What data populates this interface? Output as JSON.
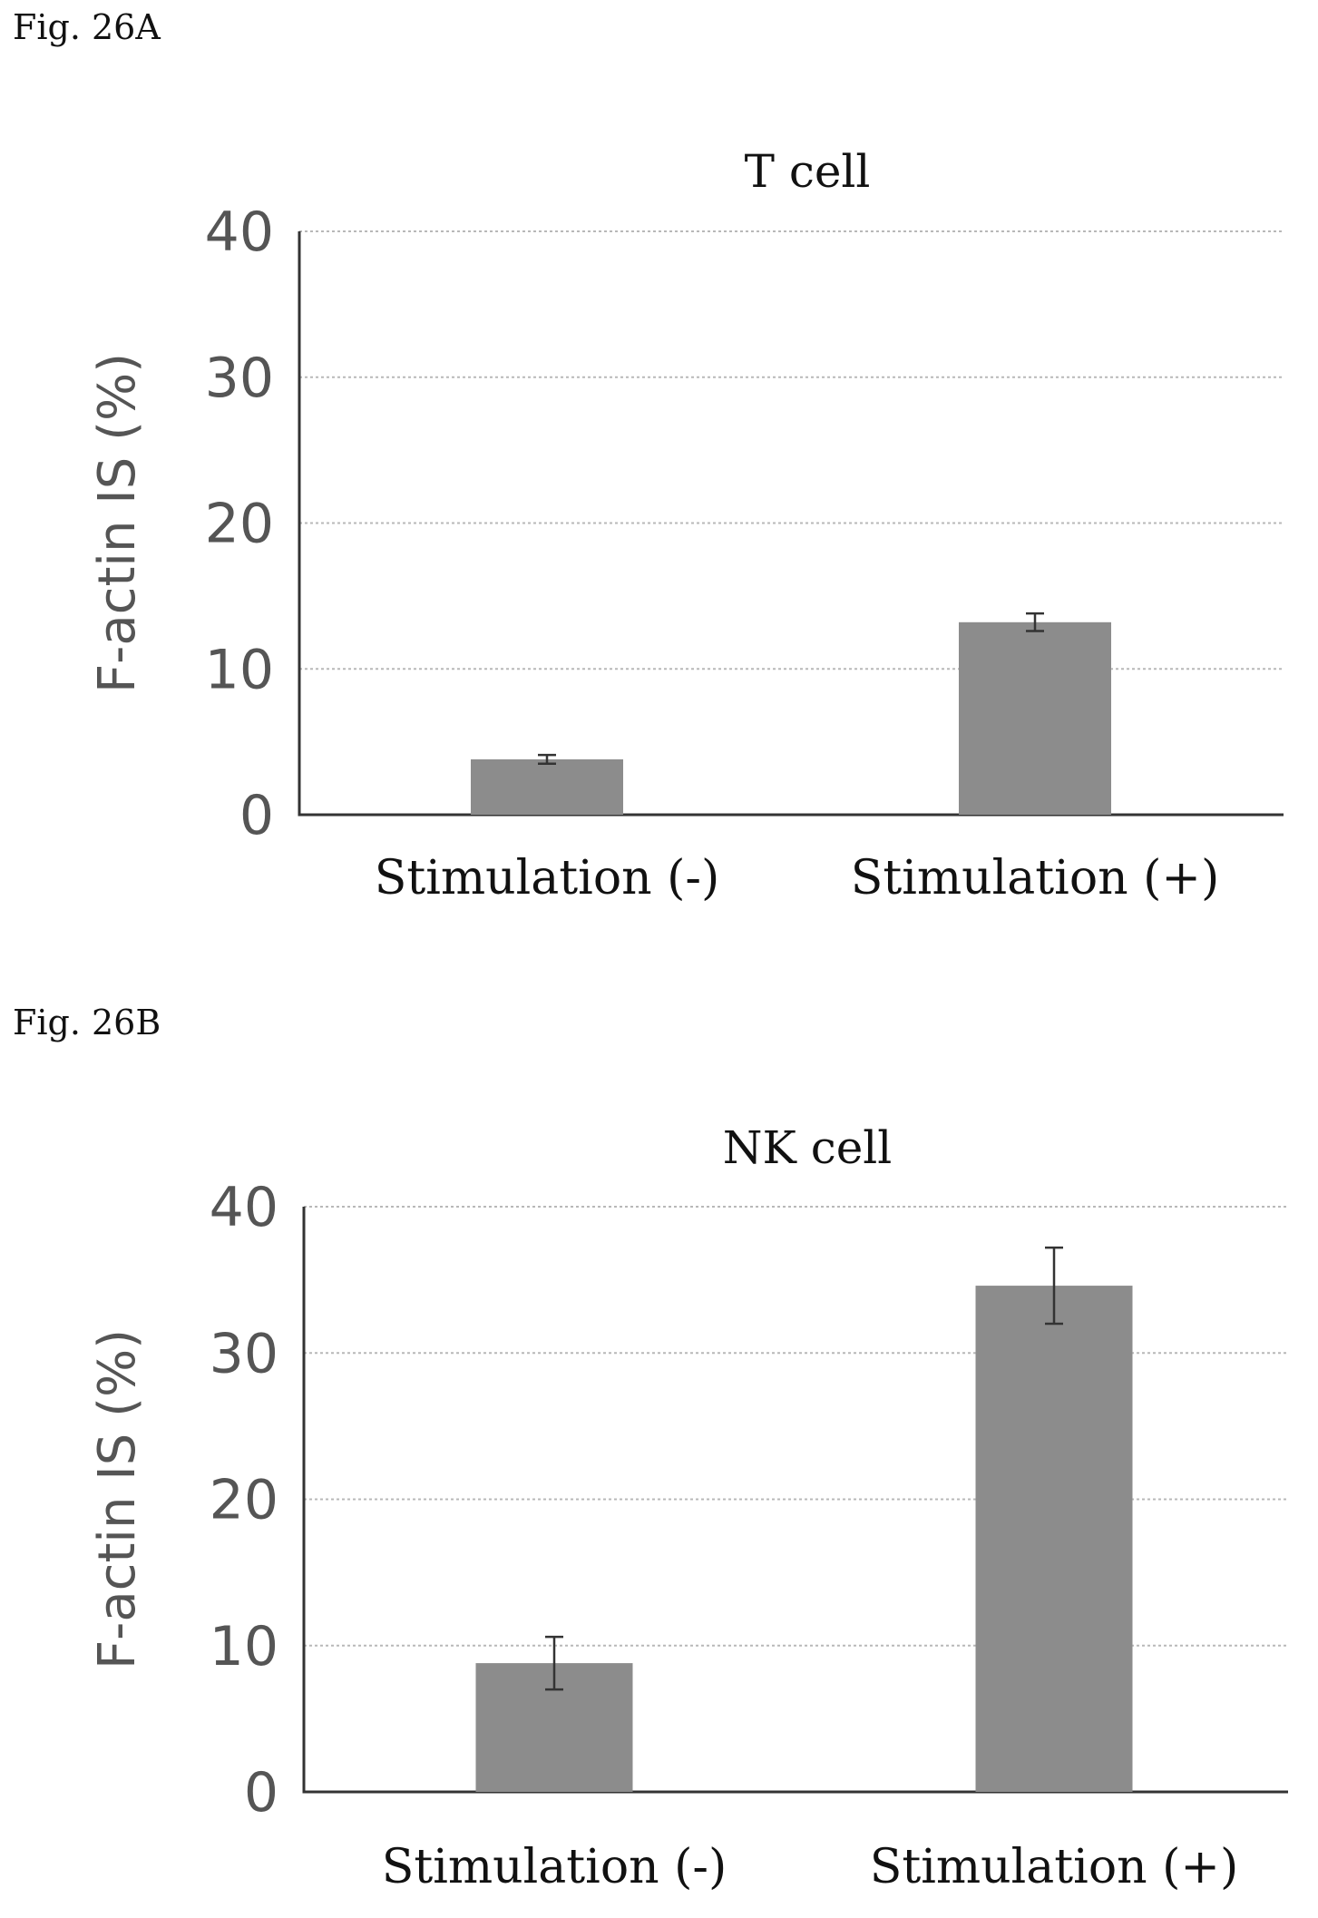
{
  "figures": {
    "a_label": "Fig. 26A",
    "b_label": "Fig. 26B"
  },
  "chart_data": [
    {
      "type": "bar",
      "title": "T cell",
      "ylabel": "F-actin IS (%)",
      "xlabel": "",
      "categories": [
        "Stimulation (-)",
        "Stimulation (+)"
      ],
      "values": [
        3.8,
        13.2
      ],
      "errors": [
        0.3,
        0.6
      ],
      "ylim": [
        0,
        40
      ],
      "yticks": [
        "0",
        "10",
        "20",
        "30",
        "40"
      ],
      "grid": true,
      "bar_color": "#8c8c8c"
    },
    {
      "type": "bar",
      "title": "NK cell",
      "ylabel": "F-actin IS (%)",
      "xlabel": "",
      "categories": [
        "Stimulation (-)",
        "Stimulation (+)"
      ],
      "values": [
        8.8,
        34.6
      ],
      "errors": [
        1.8,
        2.6
      ],
      "ylim": [
        0,
        40
      ],
      "yticks": [
        "0",
        "10",
        "20",
        "30",
        "40"
      ],
      "grid": true,
      "bar_color": "#8c8c8c"
    }
  ]
}
